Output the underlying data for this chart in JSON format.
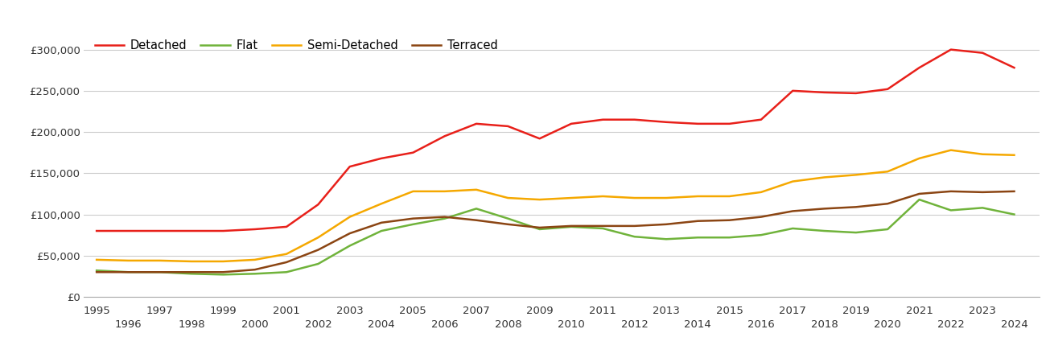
{
  "series": {
    "Detached": {
      "color": "#e8201a",
      "years": [
        1995,
        1996,
        1997,
        1998,
        1999,
        2000,
        2001,
        2002,
        2003,
        2004,
        2005,
        2006,
        2007,
        2008,
        2009,
        2010,
        2011,
        2012,
        2013,
        2014,
        2015,
        2016,
        2017,
        2018,
        2019,
        2020,
        2021,
        2022,
        2023,
        2024
      ],
      "values": [
        80000,
        80000,
        80000,
        80000,
        80000,
        82000,
        85000,
        112000,
        158000,
        168000,
        175000,
        195000,
        210000,
        207000,
        192000,
        210000,
        215000,
        215000,
        212000,
        210000,
        210000,
        215000,
        250000,
        248000,
        247000,
        252000,
        278000,
        300000,
        296000,
        278000
      ]
    },
    "Flat": {
      "color": "#70b33b",
      "years": [
        1995,
        1996,
        1997,
        1998,
        1999,
        2000,
        2001,
        2002,
        2003,
        2004,
        2005,
        2006,
        2007,
        2008,
        2009,
        2010,
        2011,
        2012,
        2013,
        2014,
        2015,
        2016,
        2017,
        2018,
        2019,
        2020,
        2021,
        2022,
        2023,
        2024
      ],
      "values": [
        32000,
        30000,
        30000,
        28000,
        27000,
        28000,
        30000,
        40000,
        62000,
        80000,
        88000,
        95000,
        107000,
        95000,
        82000,
        85000,
        83000,
        73000,
        70000,
        72000,
        72000,
        75000,
        83000,
        80000,
        78000,
        82000,
        118000,
        105000,
        108000,
        100000
      ]
    },
    "Semi-Detached": {
      "color": "#f5a800",
      "years": [
        1995,
        1996,
        1997,
        1998,
        1999,
        2000,
        2001,
        2002,
        2003,
        2004,
        2005,
        2006,
        2007,
        2008,
        2009,
        2010,
        2011,
        2012,
        2013,
        2014,
        2015,
        2016,
        2017,
        2018,
        2019,
        2020,
        2021,
        2022,
        2023,
        2024
      ],
      "values": [
        45000,
        44000,
        44000,
        43000,
        43000,
        45000,
        52000,
        72000,
        97000,
        113000,
        128000,
        128000,
        130000,
        120000,
        118000,
        120000,
        122000,
        120000,
        120000,
        122000,
        122000,
        127000,
        140000,
        145000,
        148000,
        152000,
        168000,
        178000,
        173000,
        172000
      ]
    },
    "Terraced": {
      "color": "#8B4513",
      "years": [
        1995,
        1996,
        1997,
        1998,
        1999,
        2000,
        2001,
        2002,
        2003,
        2004,
        2005,
        2006,
        2007,
        2008,
        2009,
        2010,
        2011,
        2012,
        2013,
        2014,
        2015,
        2016,
        2017,
        2018,
        2019,
        2020,
        2021,
        2022,
        2023,
        2024
      ],
      "values": [
        30000,
        30000,
        30000,
        30000,
        30000,
        33000,
        42000,
        57000,
        77000,
        90000,
        95000,
        97000,
        93000,
        88000,
        84000,
        86000,
        86000,
        86000,
        88000,
        92000,
        93000,
        97000,
        104000,
        107000,
        109000,
        113000,
        125000,
        128000,
        127000,
        128000
      ]
    }
  },
  "ylim": [
    0,
    325000
  ],
  "yticks": [
    0,
    50000,
    100000,
    150000,
    200000,
    250000,
    300000
  ],
  "background_color": "#ffffff",
  "grid_color": "#cccccc",
  "xlim": [
    1994.6,
    2024.8
  ]
}
